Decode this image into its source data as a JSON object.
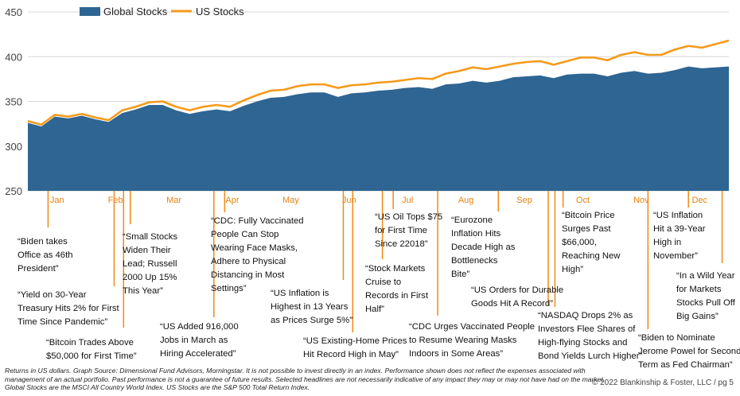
{
  "colors": {
    "global": "#2e6592",
    "us": "#f59a1b",
    "month_label": "#e8820c",
    "leader": "#f08a16"
  },
  "chart_data": {
    "type": "area",
    "title": "",
    "xlabel": "",
    "ylabel": "",
    "ylim": [
      250,
      450
    ],
    "yticks": [
      250,
      300,
      350,
      400,
      450
    ],
    "months": [
      "Jan",
      "Feb",
      "Mar",
      "Apr",
      "May",
      "Jun",
      "Jul",
      "Aug",
      "Sep",
      "Oct",
      "Nov",
      "Dec"
    ],
    "x_unit": "approx. trading week of 2021 (Jan 1 to Dec 31)",
    "x": [
      0,
      1,
      2,
      3,
      4,
      5,
      6,
      7,
      8,
      9,
      10,
      11,
      12,
      13,
      14,
      15,
      16,
      17,
      18,
      19,
      20,
      21,
      22,
      23,
      24,
      25,
      26,
      27,
      28,
      29,
      30,
      31,
      32,
      33,
      34,
      35,
      36,
      37,
      38,
      39,
      40,
      41,
      42,
      43,
      44,
      45,
      46,
      47,
      48,
      49,
      50,
      51,
      52
    ],
    "legend_position": "top-left",
    "series": [
      {
        "name": "Global Stocks",
        "style": "area",
        "values": [
          326,
          322,
          333,
          331,
          334,
          330,
          327,
          337,
          341,
          346,
          346,
          340,
          336,
          339,
          341,
          339,
          345,
          350,
          354,
          355,
          358,
          360,
          360,
          355,
          359,
          360,
          362,
          363,
          365,
          366,
          364,
          369,
          370,
          373,
          371,
          373,
          377,
          378,
          379,
          376,
          380,
          381,
          381,
          378,
          382,
          384,
          381,
          382,
          385,
          389,
          387,
          388,
          389
        ]
      },
      {
        "name": "US Stocks",
        "style": "line",
        "values": [
          328,
          324,
          335,
          333,
          336,
          332,
          329,
          340,
          344,
          349,
          350,
          344,
          340,
          344,
          346,
          344,
          351,
          357,
          362,
          363,
          367,
          369,
          369,
          365,
          368,
          369,
          371,
          372,
          374,
          376,
          375,
          381,
          384,
          388,
          386,
          389,
          392,
          394,
          395,
          391,
          395,
          399,
          399,
          396,
          402,
          405,
          402,
          402,
          408,
          412,
          410,
          414,
          418
        ]
      }
    ],
    "annotations": [
      {
        "text": "“Biden takes\nOffice as 46th\nPresident”",
        "week": 1.5
      },
      {
        "text": "“Yield on 30-Year\nTreasury Hits 2% for First\nTime Since Pandemic”",
        "week": 6.4
      },
      {
        "text": "“Bitcoin Trades Above\n$50,000 for First Time”",
        "week": 7.1
      },
      {
        "text": "“Small Stocks\nWiden Their\nLead; Russell\n2000 Up 15%\nThis Year”",
        "week": 7.6
      },
      {
        "text": "“US Added 916,000\nJobs in March as\nHiring Accelerated”",
        "week": 13.8
      },
      {
        "text": "“CDC: Fully Vaccinated\nPeople Can Stop\nWearing Face Masks,\nAdhere to Physical\nDistancing in Most\nSettings”",
        "week": 14.6
      },
      {
        "text": "“US Inflation is\nHighest in 13 Years\nas Prices Surge 5%”",
        "week": 23.4
      },
      {
        "text": "“US Existing-Home Prices\nHit Record High in May”",
        "week": 24.1
      },
      {
        "text": "“Stock Markets\nCruise to\nRecords in First\nHalf”",
        "week": 26.3
      },
      {
        "text": "“US Oil Tops $75\nfor First Time\nSince 22018”",
        "week": 27.1
      },
      {
        "text": "“CDC Urges Vaccinated People\nto Resume Wearing Masks\nIndoors in Some Areas”",
        "week": 30.4
      },
      {
        "text": "“Eurozone\nInflation Hits\nDecade High as\nBottlenecks\nBite”",
        "week": 34.9
      },
      {
        "text": "“US Orders for Durable\nGoods Hit A Record”",
        "week": 38.6
      },
      {
        "text": "“NASDAQ Drops 2% as\nInvestors Flee Shares of\nHigh-flying Stocks and\nBond Yields Lurch Higher”",
        "week": 39.1
      },
      {
        "text": "“Bitcoin Price\nSurges Past\n$66,000,\nReaching New\nHigh”",
        "week": 39.7
      },
      {
        "text": "“Biden to Nominate\nJerome Powel for Second\nTerm as Fed Chairman”",
        "week": 46.0
      },
      {
        "text": "“US Inflation\nHit a 39-Year\nHigh in\nNovember”",
        "week": 49.0
      },
      {
        "text": "“In a Wild Year\nfor Markets\nStocks Pull Off\nBig Gains”",
        "week": 51.5
      }
    ]
  },
  "footnote": "Returns in US dollars. Graph Source: Dimensional Fund Advisors, Morningstar. It is not possible to invest directly in an index. Performance shown does not reflect the expenses associated with management of an actual portfolio. Past performance is not a guarantee of future results. Selected headlines are not necessarily indicative of any impact they may or may not have had on the market. Global Stocks are the MSCI All Country World Index. US Stocks are the S&P 500 Total Return Index.",
  "copyright": "© 2022 Blankinship & Foster, LLC / pg 5"
}
